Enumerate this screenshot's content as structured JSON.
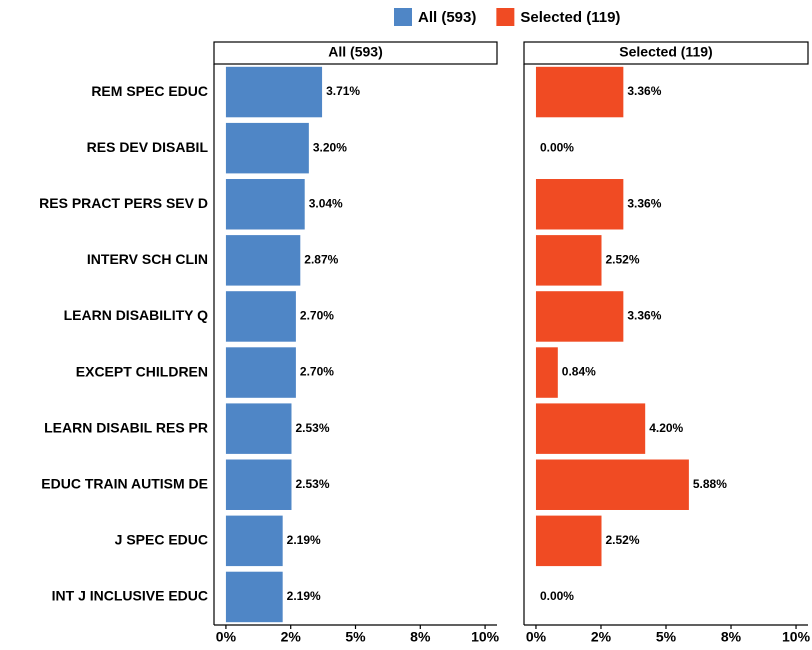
{
  "chart_data": {
    "type": "bar",
    "orientation": "horizontal",
    "categories": [
      "REM SPEC EDUC",
      "RES DEV DISABIL",
      "RES PRACT PERS SEV D",
      "INTERV SCH CLIN",
      "LEARN DISABILITY Q",
      "EXCEPT CHILDREN",
      "LEARN DISABIL RES PR",
      "EDUC TRAIN AUTISM DE",
      "J SPEC EDUC",
      "INT J INCLUSIVE EDUC"
    ],
    "series": [
      {
        "name": "All (593)",
        "color": "#4f86c6",
        "values": [
          3.71,
          3.2,
          3.04,
          2.87,
          2.7,
          2.7,
          2.53,
          2.53,
          2.19,
          2.19
        ],
        "value_labels": [
          "3.71%",
          "3.20%",
          "3.04%",
          "2.87%",
          "2.70%",
          "2.70%",
          "2.53%",
          "2.53%",
          "2.19%",
          "2.19%"
        ]
      },
      {
        "name": "Selected (119)",
        "color": "#f04b23",
        "values": [
          3.36,
          0.0,
          3.36,
          2.52,
          3.36,
          0.84,
          4.2,
          5.88,
          2.52,
          0.0
        ],
        "value_labels": [
          "3.36%",
          "0.00%",
          "3.36%",
          "2.52%",
          "3.36%",
          "0.84%",
          "4.20%",
          "5.88%",
          "2.52%",
          "0.00%"
        ]
      }
    ],
    "xlim": [
      -0.46,
      10.46
    ],
    "xticks": [
      {
        "value": 0,
        "label": "0%"
      },
      {
        "value": 2.5,
        "label": "2%"
      },
      {
        "value": 5,
        "label": "5%"
      },
      {
        "value": 7.5,
        "label": "8%"
      },
      {
        "value": 10,
        "label": "10%"
      }
    ],
    "legend": "top",
    "facets": true
  }
}
